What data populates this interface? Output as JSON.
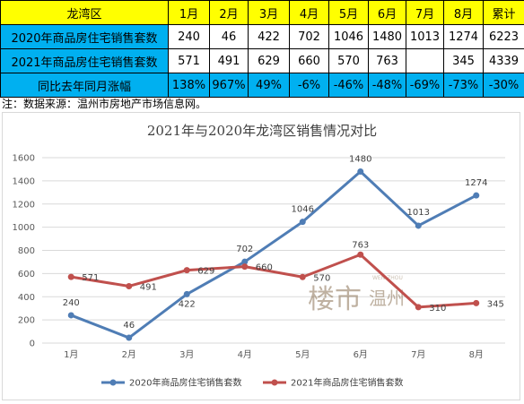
{
  "table": {
    "header_label": "龙湾区",
    "months": [
      "1月",
      "2月",
      "3月",
      "4月",
      "5月",
      "6月",
      "7月",
      "8月"
    ],
    "total_label": "累计",
    "rows": [
      {
        "label": "2020年商品房住宅销售套数",
        "values": [
          "240",
          "46",
          "422",
          "702",
          "1046",
          "1480",
          "1013",
          "1274"
        ],
        "total": "6223"
      },
      {
        "label": "2021年商品房住宅销售套数",
        "values": [
          "571",
          "491",
          "629",
          "660",
          "570",
          "763",
          "",
          "345"
        ],
        "total": "4339"
      },
      {
        "label": "同比去年同月涨幅",
        "values": [
          "138%",
          "967%",
          "49%",
          "-6%",
          "-46%",
          "-48%",
          "-69%",
          "-73%"
        ],
        "total": "-30%"
      }
    ]
  },
  "note": "注：数据来源：温州市房地产市场信息网。",
  "watermark": {
    "text_cn": "楼市",
    "text_city": "温州",
    "text_pinyin": "WEN ZHOU"
  },
  "chart_data": {
    "type": "line",
    "title": "2021年与2020年龙湾区销售情况对比",
    "categories": [
      "1月",
      "2月",
      "3月",
      "4月",
      "5月",
      "6月",
      "7月",
      "8月"
    ],
    "series": [
      {
        "name": "2020年商品房住宅销售套数",
        "values": [
          240,
          46,
          422,
          702,
          1046,
          1480,
          1013,
          1274
        ],
        "color": "#4f7db5"
      },
      {
        "name": "2021年商品房住宅销售套数",
        "values": [
          571,
          491,
          629,
          660,
          570,
          763,
          310,
          345
        ],
        "color": "#c0504d"
      }
    ],
    "yticks": [
      0,
      200,
      400,
      600,
      800,
      1000,
      1200,
      1400,
      1600
    ],
    "ylim": [
      0,
      1600
    ],
    "grid": true,
    "legend": "bottom"
  }
}
